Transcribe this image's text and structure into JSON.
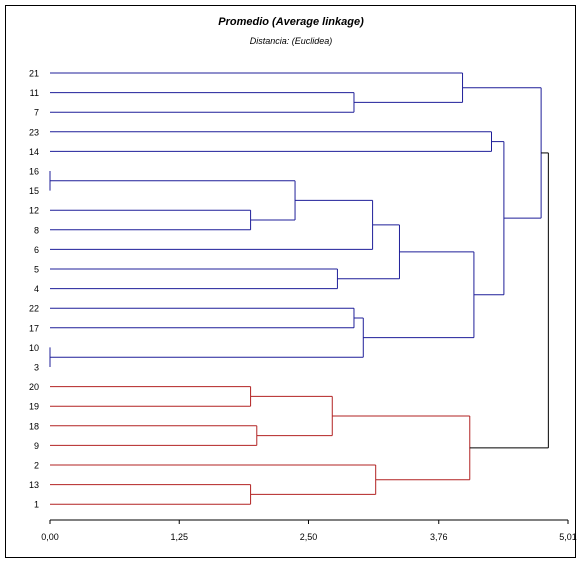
{
  "chart_data": {
    "type": "dendrogram",
    "title": "Promedio (Average linkage)",
    "subtitle": "Distancia: (Euclidea)",
    "xlim": [
      0,
      5.01
    ],
    "x_ticks": [
      "0,00",
      "1,25",
      "2,50",
      "3,76",
      "5,01"
    ],
    "x_tick_values": [
      0,
      1.25,
      2.5,
      3.76,
      5.01
    ],
    "leaf_order": [
      "21",
      "11",
      "7",
      "23",
      "14",
      "16",
      "15",
      "12",
      "8",
      "6",
      "5",
      "4",
      "22",
      "17",
      "10",
      "3",
      "20",
      "19",
      "18",
      "9",
      "2",
      "13",
      "1"
    ],
    "colors": {
      "cluster_1": "#1f1f99",
      "cluster_2": "#b22222",
      "root": "#000000",
      "axis": "#000000"
    },
    "merges": [
      {
        "id": "m1",
        "children": [
          "11",
          "7"
        ],
        "height": 2.94,
        "cluster": "cluster_1"
      },
      {
        "id": "m2",
        "children": [
          "21",
          "m1"
        ],
        "height": 3.99,
        "cluster": "cluster_1"
      },
      {
        "id": "m3",
        "children": [
          "23",
          "14"
        ],
        "height": 4.27,
        "cluster": "cluster_1"
      },
      {
        "id": "m4",
        "children": [
          "16",
          "15"
        ],
        "height": 0.0,
        "cluster": "cluster_1"
      },
      {
        "id": "m5",
        "children": [
          "12",
          "8"
        ],
        "height": 1.94,
        "cluster": "cluster_1"
      },
      {
        "id": "m6",
        "children": [
          "m4",
          "m5"
        ],
        "height": 2.37,
        "cluster": "cluster_1"
      },
      {
        "id": "m7",
        "children": [
          "m6",
          "6"
        ],
        "height": 3.12,
        "cluster": "cluster_1"
      },
      {
        "id": "m8",
        "children": [
          "5",
          "4"
        ],
        "height": 2.78,
        "cluster": "cluster_1"
      },
      {
        "id": "m9",
        "children": [
          "m7",
          "m8"
        ],
        "height": 3.38,
        "cluster": "cluster_1"
      },
      {
        "id": "m10",
        "children": [
          "22",
          "17"
        ],
        "height": 2.94,
        "cluster": "cluster_1"
      },
      {
        "id": "m11",
        "children": [
          "10",
          "3"
        ],
        "height": 0.0,
        "cluster": "cluster_1"
      },
      {
        "id": "m12",
        "children": [
          "m10",
          "m11"
        ],
        "height": 3.03,
        "cluster": "cluster_1"
      },
      {
        "id": "m13",
        "children": [
          "m9",
          "m12"
        ],
        "height": 4.1,
        "cluster": "cluster_1"
      },
      {
        "id": "m14",
        "children": [
          "m3",
          "m13"
        ],
        "height": 4.39,
        "cluster": "cluster_1"
      },
      {
        "id": "m15",
        "children": [
          "m2",
          "m14"
        ],
        "height": 4.75,
        "cluster": "cluster_1"
      },
      {
        "id": "m16",
        "children": [
          "20",
          "19"
        ],
        "height": 1.94,
        "cluster": "cluster_2"
      },
      {
        "id": "m17",
        "children": [
          "18",
          "9"
        ],
        "height": 2.0,
        "cluster": "cluster_2"
      },
      {
        "id": "m18",
        "children": [
          "m16",
          "m17"
        ],
        "height": 2.73,
        "cluster": "cluster_2"
      },
      {
        "id": "m19",
        "children": [
          "13",
          "1"
        ],
        "height": 1.94,
        "cluster": "cluster_2"
      },
      {
        "id": "m20",
        "children": [
          "2",
          "m19"
        ],
        "height": 3.15,
        "cluster": "cluster_2"
      },
      {
        "id": "m21",
        "children": [
          "m18",
          "m20"
        ],
        "height": 4.06,
        "cluster": "cluster_2"
      },
      {
        "id": "m22",
        "children": [
          "m15",
          "m21"
        ],
        "height": 4.82,
        "cluster": "root"
      }
    ]
  }
}
